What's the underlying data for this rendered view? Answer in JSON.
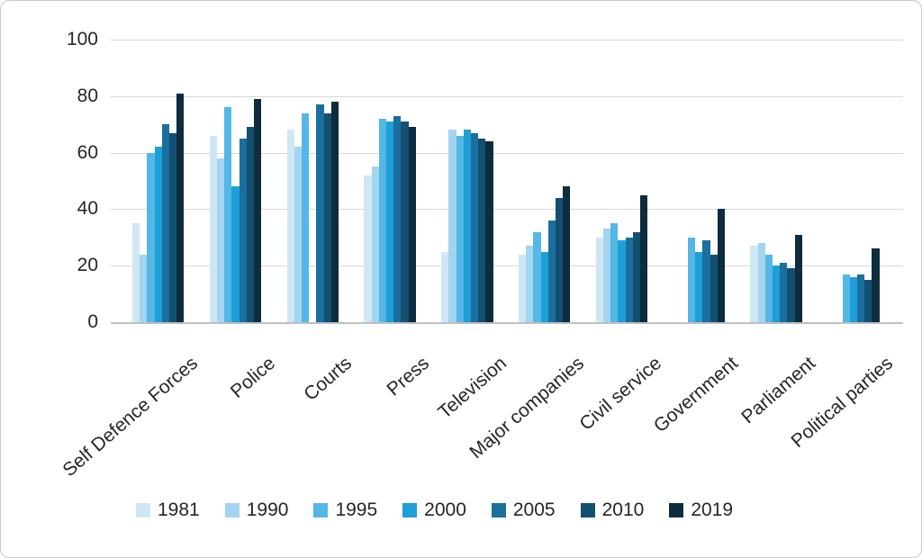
{
  "chart": {
    "background": "#ffffff",
    "border_color": "#c9c9c9",
    "gridline_color": "#d9d9d9",
    "axis_line_color": "#bfbfbf",
    "text_color": "#262626"
  },
  "chart_data": {
    "type": "bar",
    "title": "",
    "xlabel": "",
    "ylabel": "",
    "ylim": [
      0,
      100
    ],
    "yticks": [
      0,
      20,
      40,
      60,
      80,
      100
    ],
    "grid": "horizontal",
    "legend_position": "bottom",
    "categories": [
      "Self Defence Forces",
      "Police",
      "Courts",
      "Press",
      "Television",
      "Major companies",
      "Civil service",
      "Government",
      "Parliament",
      "Political parties"
    ],
    "series": [
      {
        "name": "1981",
        "color": "#cfe7f5",
        "values": [
          35,
          66,
          68,
          52,
          25,
          24,
          30,
          null,
          27,
          null
        ]
      },
      {
        "name": "1990",
        "color": "#a3d5f0",
        "values": [
          24,
          58,
          62,
          55,
          68,
          27,
          33,
          null,
          28,
          null
        ]
      },
      {
        "name": "1995",
        "color": "#54b7e6",
        "values": [
          60,
          76,
          74,
          72,
          66,
          32,
          35,
          30,
          24,
          17
        ]
      },
      {
        "name": "2000",
        "color": "#1f9fd8",
        "values": [
          62,
          48,
          null,
          71,
          68,
          25,
          29,
          25,
          20,
          16
        ]
      },
      {
        "name": "2005",
        "color": "#1a6f9e",
        "values": [
          70,
          65,
          77,
          73,
          67,
          36,
          30,
          29,
          21,
          17
        ]
      },
      {
        "name": "2010",
        "color": "#134f70",
        "values": [
          67,
          69,
          74,
          71,
          65,
          44,
          32,
          24,
          19,
          15
        ]
      },
      {
        "name": "2019",
        "color": "#0d2c3e",
        "values": [
          81,
          79,
          78,
          69,
          64,
          48,
          45,
          40,
          31,
          26
        ]
      }
    ]
  }
}
